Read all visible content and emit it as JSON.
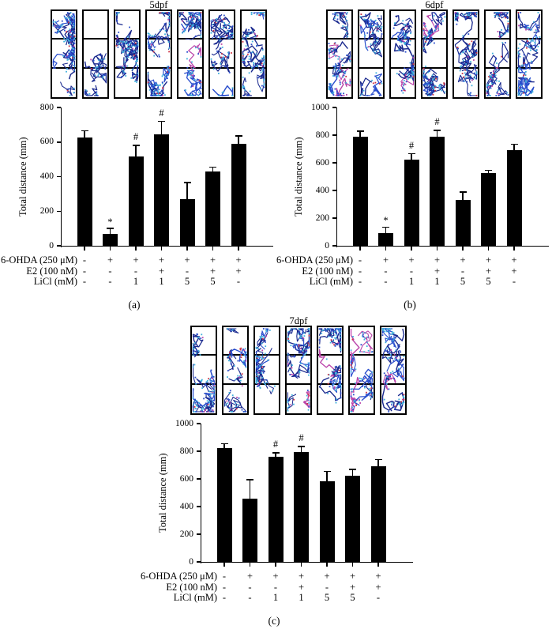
{
  "figure_caption_letters": [
    "(a)",
    "(b)",
    "(c)"
  ],
  "colors": {
    "bar": "#000000",
    "axis": "#000000",
    "track_dark_blue": "#1b2a8f",
    "track_blue": "#2a4ecd",
    "track_cyan": "#3fb0dd",
    "track_red": "#cc3344",
    "track_magenta": "#bb44aa"
  },
  "chart_data": [
    {
      "type": "bar",
      "title": "5dpf",
      "panel_letter": "(a)",
      "ylabel": "Total distance (mm)",
      "ylim": [
        0,
        800
      ],
      "yticks": [
        0,
        200,
        400,
        600,
        800
      ],
      "values": [
        625,
        70,
        515,
        645,
        270,
        430,
        590
      ],
      "errors": [
        40,
        30,
        65,
        75,
        95,
        25,
        45
      ],
      "significance": [
        "",
        "*",
        "#",
        "#",
        "",
        "",
        ""
      ],
      "treatment_rows": [
        {
          "label": "6-OHDA (250 μM)",
          "cells": [
            "-",
            "+",
            "+",
            "+",
            "+",
            "+",
            "+"
          ]
        },
        {
          "label": "E2 (100 nM)",
          "cells": [
            "-",
            "-",
            "-",
            "+",
            "-",
            "+",
            "+"
          ]
        },
        {
          "label": "LiCl (mM)",
          "cells": [
            "-",
            "-",
            "1",
            "1",
            "5",
            "5",
            "-"
          ]
        }
      ],
      "track_image_count": 7,
      "track_densities": [
        0.95,
        0.2,
        0.85,
        0.9,
        0.8,
        0.65,
        0.85
      ],
      "track_bias": [
        "full",
        "bottom",
        "full",
        "full",
        "full",
        "full",
        "full"
      ]
    },
    {
      "type": "bar",
      "title": "6dpf",
      "panel_letter": "(b)",
      "ylabel": "Total distance (mm)",
      "ylim": [
        0,
        1000
      ],
      "yticks": [
        0,
        200,
        400,
        600,
        800,
        1000
      ],
      "values": [
        790,
        90,
        625,
        790,
        330,
        525,
        690
      ],
      "errors": [
        40,
        45,
        40,
        45,
        60,
        20,
        45
      ],
      "significance": [
        "",
        "*",
        "#",
        "#",
        "",
        "",
        ""
      ],
      "treatment_rows": [
        {
          "label": "6-OHDA (250 μM)",
          "cells": [
            "-",
            "+",
            "+",
            "+",
            "+",
            "+",
            "+"
          ]
        },
        {
          "label": "E2 (100 nM)",
          "cells": [
            "-",
            "-",
            "-",
            "+",
            "-",
            "+",
            "+"
          ]
        },
        {
          "label": "LiCl (mM)",
          "cells": [
            "-",
            "-",
            "1",
            "1",
            "5",
            "5",
            "-"
          ]
        }
      ],
      "track_image_count": 7,
      "track_densities": [
        0.9,
        0.5,
        0.65,
        0.85,
        0.75,
        0.7,
        0.8
      ],
      "track_bias": [
        "full",
        "full",
        "full",
        "full",
        "full",
        "full",
        "full"
      ]
    },
    {
      "type": "bar",
      "title": "7dpf",
      "panel_letter": "(c)",
      "ylabel": "Total distance (mm)",
      "ylim": [
        0,
        1000
      ],
      "yticks": [
        0,
        200,
        400,
        600,
        800,
        1000
      ],
      "values": [
        825,
        460,
        760,
        795,
        585,
        625,
        690
      ],
      "errors": [
        30,
        135,
        30,
        40,
        70,
        45,
        50
      ],
      "significance": [
        "",
        "",
        "#",
        "#",
        "",
        "",
        ""
      ],
      "treatment_rows": [
        {
          "label": "6-OHDA (250 μM)",
          "cells": [
            "-",
            "+",
            "+",
            "+",
            "+",
            "+",
            "+"
          ]
        },
        {
          "label": "E2 (100 nM)",
          "cells": [
            "-",
            "-",
            "-",
            "+",
            "-",
            "+",
            "+"
          ]
        },
        {
          "label": "LiCl (mM)",
          "cells": [
            "-",
            "-",
            "1",
            "1",
            "5",
            "5",
            "-"
          ]
        }
      ],
      "track_image_count": 7,
      "track_densities": [
        0.9,
        0.55,
        0.7,
        0.85,
        0.8,
        0.7,
        0.8
      ],
      "track_bias": [
        "full",
        "full",
        "full",
        "full",
        "full",
        "full",
        "full"
      ]
    }
  ]
}
